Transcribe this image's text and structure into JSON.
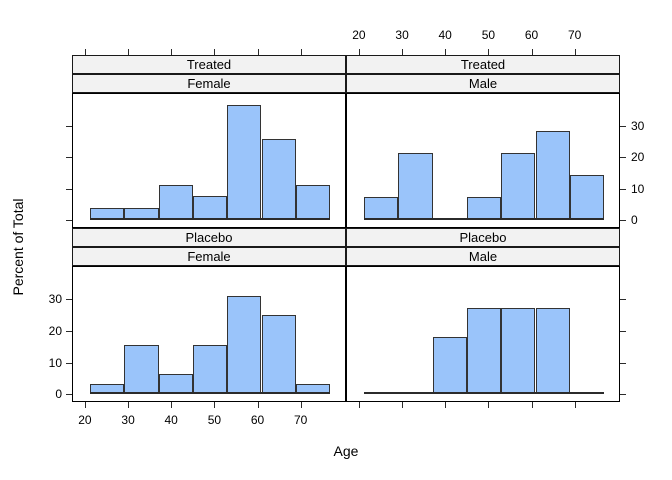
{
  "figure": {
    "ylabel": "Percent of Total",
    "xlabel": "Age"
  },
  "colors": {
    "bar_fill": "#9AC4FA",
    "bar_border": "#333333",
    "strip_bg": "#F2F2F2",
    "panel_border": "#000000",
    "text": "#000000"
  },
  "chart_data": {
    "type": "bar",
    "subtype": "lattice-histogram-2x2",
    "title": "",
    "xlabel": "Age",
    "ylabel": "Percent of Total",
    "x_ticks": [
      20,
      30,
      40,
      50,
      60,
      70
    ],
    "y_ticks": [
      0,
      10,
      20,
      30
    ],
    "x_range": [
      17,
      80.5
    ],
    "y_range": [
      -2.5,
      40.5
    ],
    "bin_edges": [
      21,
      29,
      37,
      45,
      53,
      61,
      69,
      77
    ],
    "grid": "off",
    "axis_alternating": {
      "top_labels_column": "right",
      "bottom_labels_column": "left",
      "left_labels_row": "bottom",
      "right_labels_row": "top"
    },
    "panels": [
      {
        "strip1": "Treated",
        "strip2": "Female",
        "values": [
          3.7,
          3.7,
          11.1,
          7.4,
          37.0,
          25.9,
          11.1
        ]
      },
      {
        "strip1": "Treated",
        "strip2": "Male",
        "values": [
          7.1,
          21.4,
          0,
          7.1,
          21.4,
          28.6,
          14.3
        ]
      },
      {
        "strip1": "Placebo",
        "strip2": "Female",
        "values": [
          3.1,
          15.6,
          6.2,
          15.6,
          31.2,
          25.0,
          3.1
        ]
      },
      {
        "strip1": "Placebo",
        "strip2": "Male",
        "values": [
          0,
          0,
          18.2,
          27.3,
          27.3,
          27.3,
          0
        ]
      }
    ]
  }
}
